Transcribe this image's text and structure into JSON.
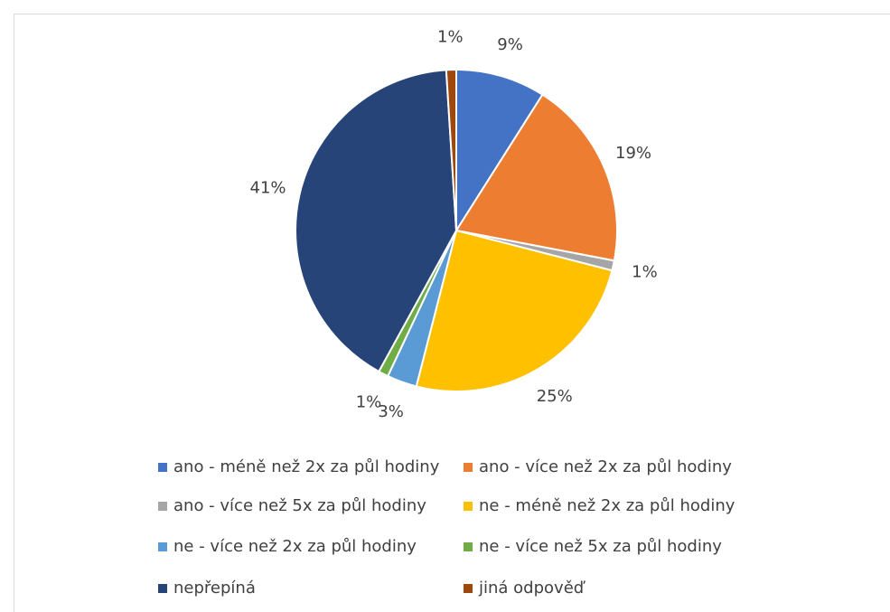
{
  "chart_data": {
    "type": "pie",
    "categories": [
      "ano - méně než 2x za půl hodiny",
      "ano - více než 2x za půl hodiny",
      "ano - více než 5x za půl hodiny",
      "ne - méně než 2x za půl hodiny",
      "ne - více než 2x za půl hodiny",
      "ne - více než 5x za půl hodiny",
      "nepřepíná",
      "jiná odpověď"
    ],
    "values": [
      9,
      19,
      1,
      25,
      3,
      1,
      41,
      1
    ],
    "value_labels": [
      "9%",
      "19%",
      "1%",
      "25%",
      "3%",
      "1%",
      "41%",
      "1%"
    ],
    "colors": [
      "#4472c4",
      "#ed7d31",
      "#a5a5a5",
      "#ffc000",
      "#5b9bd5",
      "#70ad47",
      "#264478",
      "#9e480e"
    ],
    "legend": "bottom"
  }
}
